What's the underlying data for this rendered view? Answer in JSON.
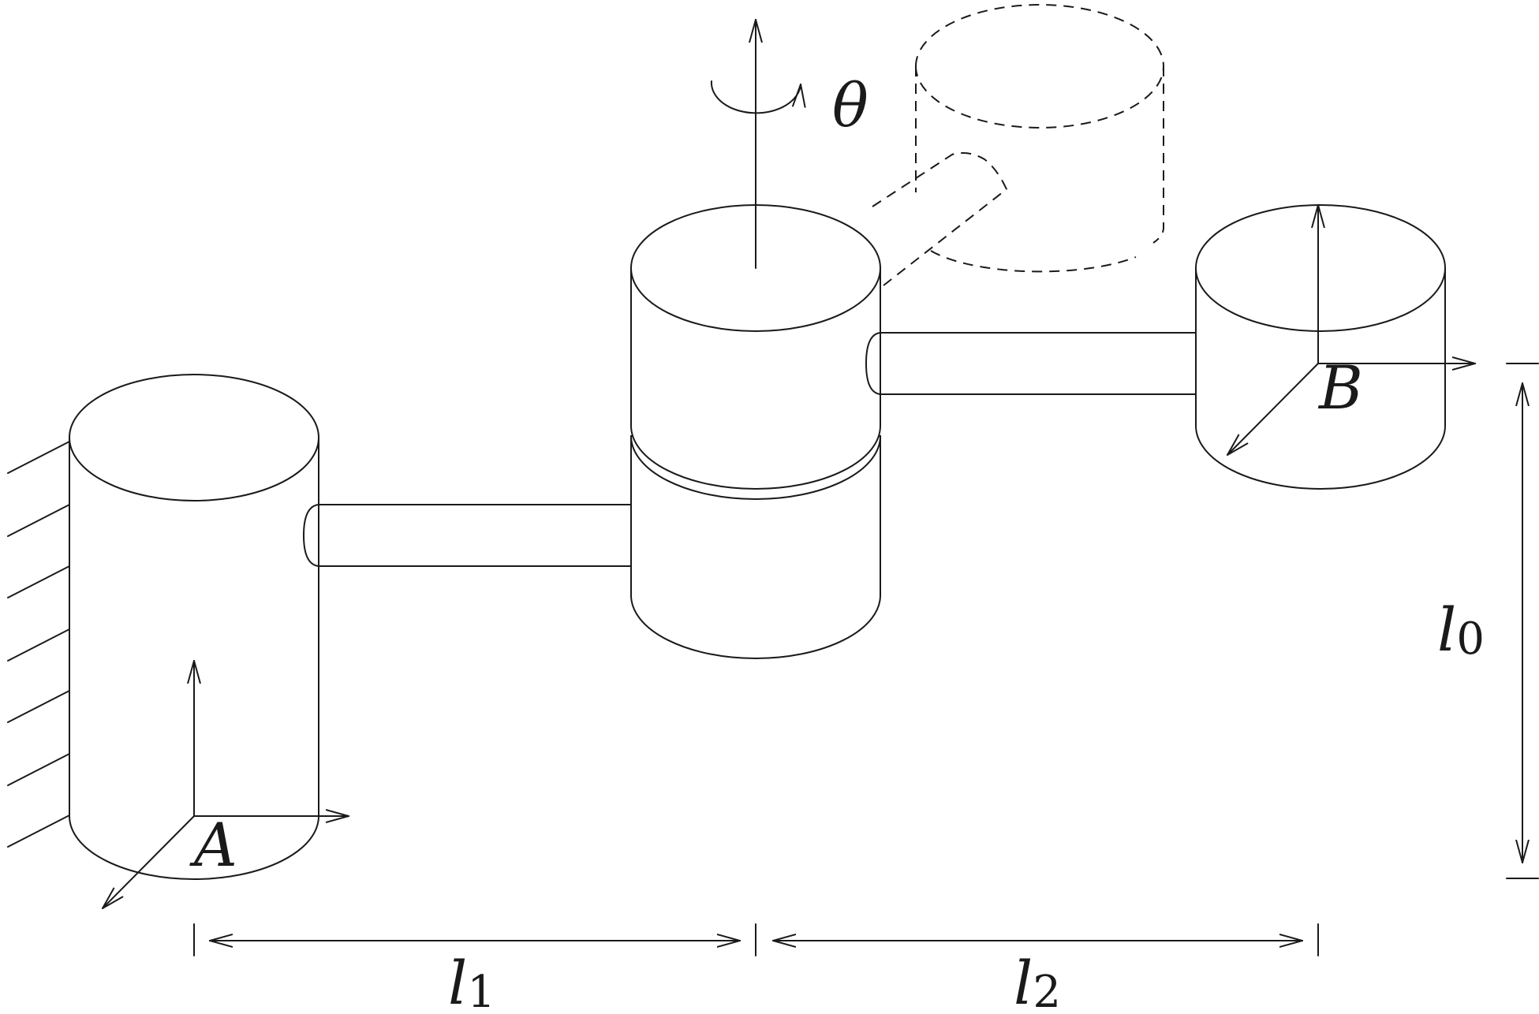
{
  "labels": {
    "frame_a": "A",
    "frame_b": "B",
    "rotation": "θ"
  },
  "dimensions": {
    "l0": {
      "symbol": "l",
      "subscript": "0"
    },
    "l1": {
      "symbol": "l",
      "subscript": "1"
    },
    "l2": {
      "symbol": "l",
      "subscript": "2"
    }
  },
  "colors": {
    "stroke": "#1a1a1a",
    "background": "#ffffff"
  }
}
